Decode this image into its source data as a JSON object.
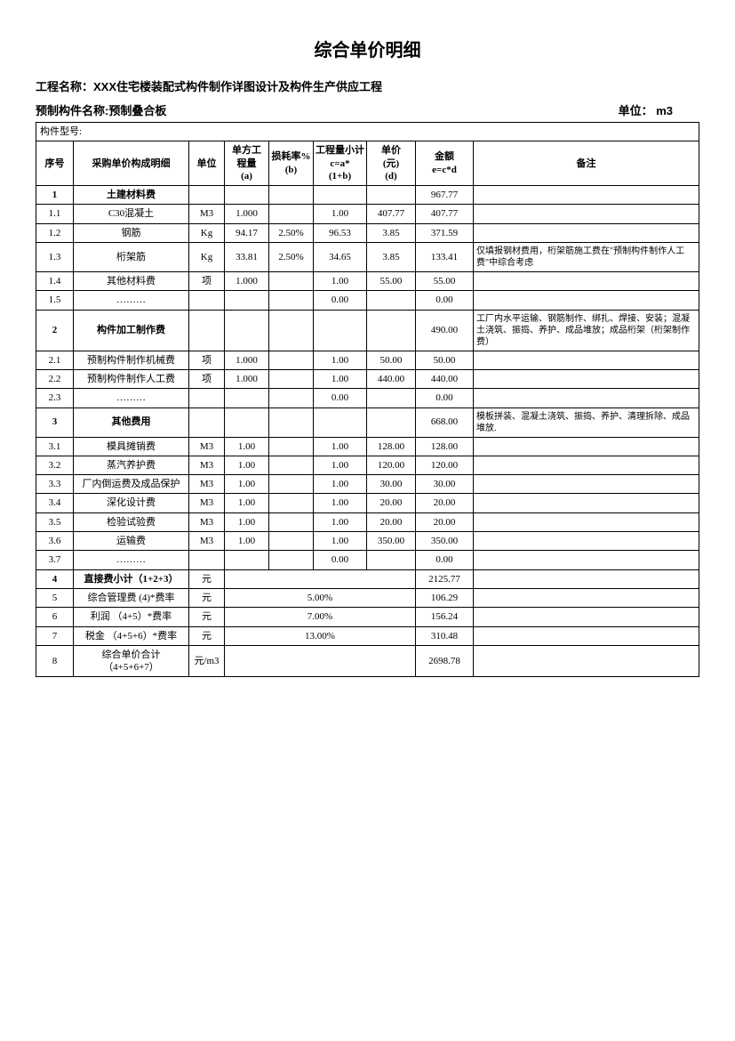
{
  "title": "综合单价明细",
  "project_label": "工程名称：",
  "project_name": "XXX住宅楼装配式构件制作详图设计及构件生产供应工程",
  "component_label": "预制构件名称:",
  "component_name": "预制叠合板",
  "unit_label": "单位：",
  "unit_value": "m3",
  "model_label": "构件型号:",
  "headers": {
    "seq": "序号",
    "desc": "采购单价构成明细",
    "unit": "单位",
    "qty": "单方工\n程量\n(a)",
    "loss": "损耗率%\n(b)",
    "calc": "工程量小计\nc=a*\n(1+b)",
    "price": "单价\n(元)\n(d)",
    "amt": "金额\ne=c*d",
    "rem": "备注"
  },
  "rows": [
    {
      "seq": "1",
      "desc": "土建材料费",
      "unit": "",
      "qty": "",
      "loss": "",
      "calc": "",
      "price": "",
      "amt": "967.77",
      "rem": "",
      "bold": true
    },
    {
      "seq": "1.1",
      "desc": "C30混凝土",
      "unit": "M3",
      "qty": "1.000",
      "loss": "",
      "calc": "1.00",
      "price": "407.77",
      "amt": "407.77",
      "rem": ""
    },
    {
      "seq": "1.2",
      "desc": "钢筋",
      "unit": "Kg",
      "qty": "94.17",
      "loss": "2.50%",
      "calc": "96.53",
      "price": "3.85",
      "amt": "371.59",
      "rem": ""
    },
    {
      "seq": "1.3",
      "desc": "桁架筋",
      "unit": "Kg",
      "qty": "33.81",
      "loss": "2.50%",
      "calc": "34.65",
      "price": "3.85",
      "amt": "133.41",
      "rem": "仅填报钢材费用，桁架筋施工费在\"预制构件制作人工费\"中综合考虑"
    },
    {
      "seq": "1.4",
      "desc": "其他材料费",
      "unit": "项",
      "qty": "1.000",
      "loss": "",
      "calc": "1.00",
      "price": "55.00",
      "amt": "55.00",
      "rem": ""
    },
    {
      "seq": "1.5",
      "desc": "………",
      "unit": "",
      "qty": "",
      "loss": "",
      "calc": "0.00",
      "price": "",
      "amt": "0.00",
      "rem": ""
    },
    {
      "seq": "2",
      "desc": "构件加工制作费",
      "unit": "",
      "qty": "",
      "loss": "",
      "calc": "",
      "price": "",
      "amt": "490.00",
      "rem": "工厂内水平运输、钢筋制作、绑扎、焊接、安装；混凝土浇筑、振捣、养护、成品堆放；成品桁架（桁架制作费）",
      "bold": true
    },
    {
      "seq": "2.1",
      "desc": "预制构件制作机械费",
      "unit": "项",
      "qty": "1.000",
      "loss": "",
      "calc": "1.00",
      "price": "50.00",
      "amt": "50.00",
      "rem": ""
    },
    {
      "seq": "2.2",
      "desc": "预制构件制作人工费",
      "unit": "项",
      "qty": "1.000",
      "loss": "",
      "calc": "1.00",
      "price": "440.00",
      "amt": "440.00",
      "rem": ""
    },
    {
      "seq": "2.3",
      "desc": "………",
      "unit": "",
      "qty": "",
      "loss": "",
      "calc": "0.00",
      "price": "",
      "amt": "0.00",
      "rem": ""
    },
    {
      "seq": "3",
      "desc": "其他费用",
      "unit": "",
      "qty": "",
      "loss": "",
      "calc": "",
      "price": "",
      "amt": "668.00",
      "rem": "模板拼装、混凝土浇筑、振捣、养护、清理拆除、成品堆放.",
      "bold": true
    },
    {
      "seq": "3.1",
      "desc": "模具摊销费",
      "unit": "M3",
      "qty": "1.00",
      "loss": "",
      "calc": "1.00",
      "price": "128.00",
      "amt": "128.00",
      "rem": ""
    },
    {
      "seq": "3.2",
      "desc": "蒸汽养护费",
      "unit": "M3",
      "qty": "1.00",
      "loss": "",
      "calc": "1.00",
      "price": "120.00",
      "amt": "120.00",
      "rem": ""
    },
    {
      "seq": "3.3",
      "desc": "厂内倒运费及成品保护",
      "unit": "M3",
      "qty": "1.00",
      "loss": "",
      "calc": "1.00",
      "price": "30.00",
      "amt": "30.00",
      "rem": ""
    },
    {
      "seq": "3.4",
      "desc": "深化设计费",
      "unit": "M3",
      "qty": "1.00",
      "loss": "",
      "calc": "1.00",
      "price": "20.00",
      "amt": "20.00",
      "rem": ""
    },
    {
      "seq": "3.5",
      "desc": "检验试验费",
      "unit": "M3",
      "qty": "1.00",
      "loss": "",
      "calc": "1.00",
      "price": "20.00",
      "amt": "20.00",
      "rem": ""
    },
    {
      "seq": "3.6",
      "desc": "运输费",
      "unit": "M3",
      "qty": "1.00",
      "loss": "",
      "calc": "1.00",
      "price": "350.00",
      "amt": "350.00",
      "rem": ""
    },
    {
      "seq": "3.7",
      "desc": "………",
      "unit": "",
      "qty": "",
      "loss": "",
      "calc": "0.00",
      "price": "",
      "amt": "0.00",
      "rem": ""
    }
  ],
  "summary": [
    {
      "seq": "4",
      "desc": "直接费小计（1+2+3）",
      "unit": "元",
      "mid": "",
      "amt": "2125.77",
      "bold": true
    },
    {
      "seq": "5",
      "desc": "综合管理费 (4)*费率",
      "unit": "元",
      "mid": "5.00%",
      "amt": "106.29"
    },
    {
      "seq": "6",
      "desc": "利润 （4+5）*费率",
      "unit": "元",
      "mid": "7.00%",
      "amt": "156.24"
    },
    {
      "seq": "7",
      "desc": "税金 （4+5+6）*费率",
      "unit": "元",
      "mid": "13.00%",
      "amt": "310.48"
    },
    {
      "seq": "8",
      "desc": "综合单价合计\n（4+5+6+7）",
      "unit": "元/m3",
      "mid": "",
      "amt": "2698.78"
    }
  ]
}
